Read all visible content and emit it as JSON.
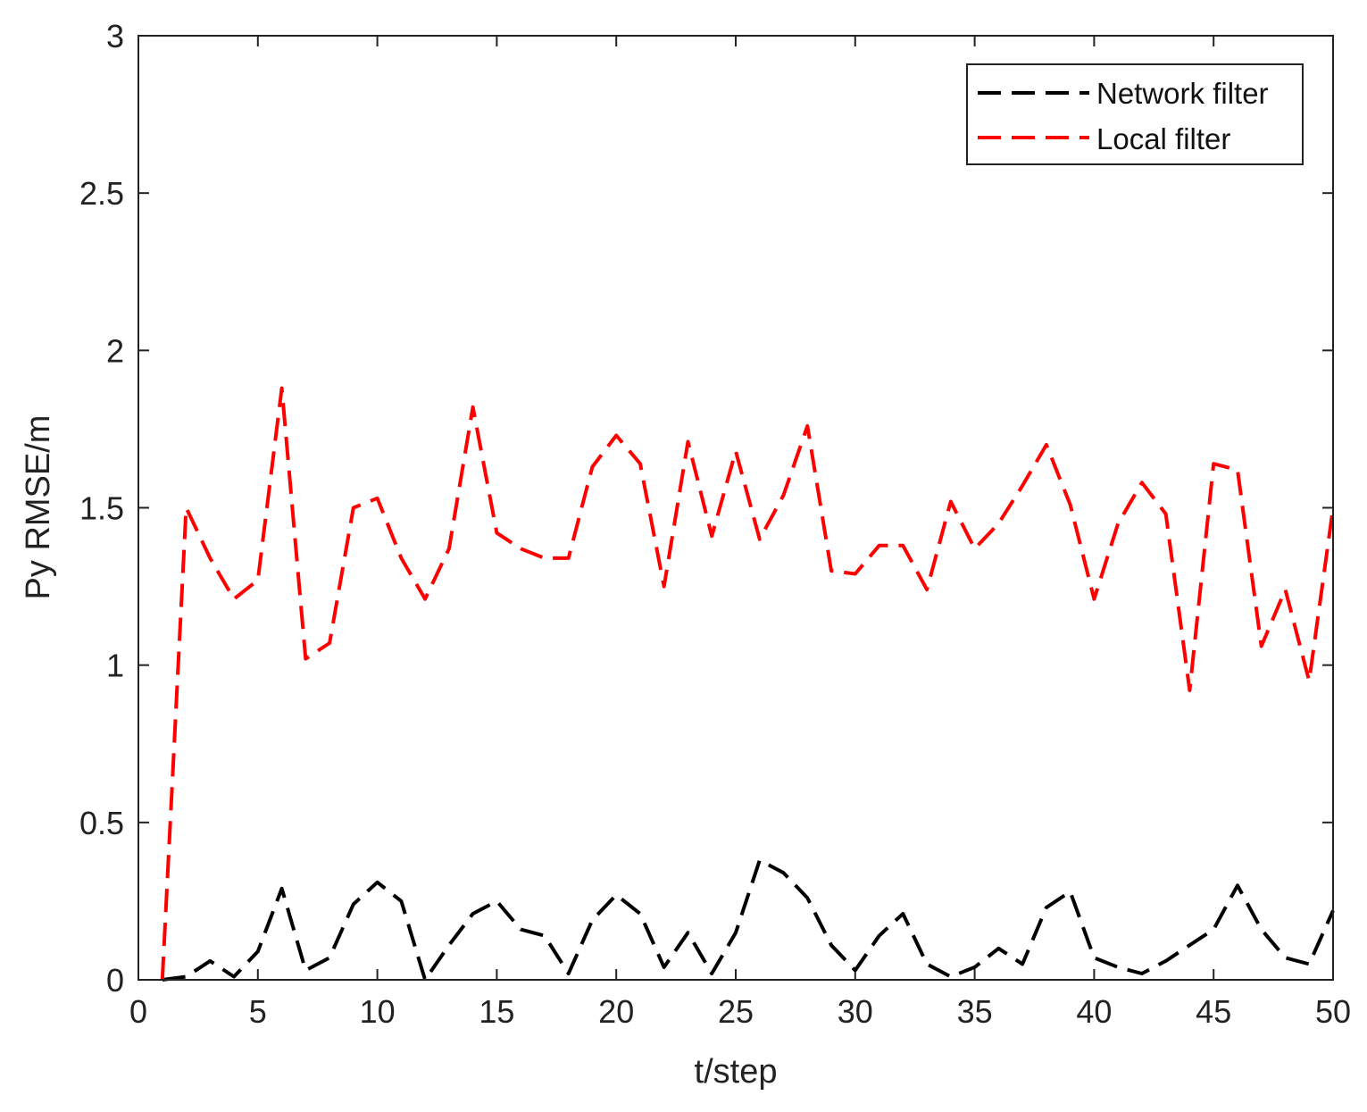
{
  "chart_data": {
    "type": "line",
    "xlabel": "t/step",
    "ylabel": "Py RMSE/m",
    "xlim": [
      0,
      50
    ],
    "ylim": [
      0,
      3
    ],
    "xticks": [
      0,
      5,
      10,
      15,
      20,
      25,
      30,
      35,
      40,
      45,
      50
    ],
    "yticks": [
      0,
      0.5,
      1,
      1.5,
      2,
      2.5,
      3
    ],
    "ytick_labels": [
      "0",
      "0.5",
      "1",
      "1.5",
      "2",
      "2.5",
      "3"
    ],
    "grid": false,
    "legend_position": "top-right",
    "x": [
      1,
      2,
      3,
      4,
      5,
      6,
      7,
      8,
      9,
      10,
      11,
      12,
      13,
      14,
      15,
      16,
      17,
      18,
      19,
      20,
      21,
      22,
      23,
      24,
      25,
      26,
      27,
      28,
      29,
      30,
      31,
      32,
      33,
      34,
      35,
      36,
      37,
      38,
      39,
      40,
      41,
      42,
      43,
      44,
      45,
      46,
      47,
      48,
      49,
      50
    ],
    "series": [
      {
        "name": "Network filter",
        "color": "#000000",
        "values": [
          0,
          0.01,
          0.06,
          0.01,
          0.09,
          0.29,
          0.03,
          0.07,
          0.24,
          0.31,
          0.25,
          0,
          0.11,
          0.21,
          0.25,
          0.16,
          0.14,
          0.02,
          0.19,
          0.27,
          0.21,
          0.04,
          0.15,
          0.02,
          0.15,
          0.38,
          0.34,
          0.26,
          0.11,
          0.03,
          0.14,
          0.21,
          0.05,
          0.01,
          0.04,
          0.1,
          0.05,
          0.23,
          0.28,
          0.07,
          0.04,
          0.02,
          0.06,
          0.11,
          0.16,
          0.3,
          0.16,
          0.07,
          0.05,
          0.22
        ]
      },
      {
        "name": "Local filter",
        "color": "#ff0000",
        "values": [
          0,
          1.5,
          1.34,
          1.21,
          1.27,
          1.88,
          1.02,
          1.07,
          1.5,
          1.53,
          1.34,
          1.21,
          1.37,
          1.82,
          1.42,
          1.37,
          1.34,
          1.34,
          1.63,
          1.73,
          1.64,
          1.25,
          1.71,
          1.41,
          1.68,
          1.4,
          1.54,
          1.76,
          1.3,
          1.29,
          1.38,
          1.38,
          1.24,
          1.52,
          1.37,
          1.45,
          1.57,
          1.7,
          1.51,
          1.21,
          1.45,
          1.58,
          1.48,
          0.92,
          1.64,
          1.62,
          1.06,
          1.24,
          0.95,
          1.5
        ]
      }
    ]
  }
}
